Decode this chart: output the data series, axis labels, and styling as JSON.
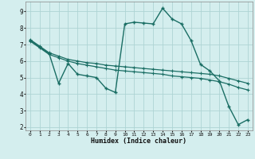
{
  "xlabel": "Humidex (Indice chaleur)",
  "bg_color": "#d4eeee",
  "grid_color": "#aed4d4",
  "line_color": "#1a6e64",
  "xlim": [
    -0.5,
    23.5
  ],
  "ylim": [
    1.8,
    9.6
  ],
  "yticks": [
    2,
    3,
    4,
    5,
    6,
    7,
    8,
    9
  ],
  "xticks": [
    0,
    1,
    2,
    3,
    4,
    5,
    6,
    7,
    8,
    9,
    10,
    11,
    12,
    13,
    14,
    15,
    16,
    17,
    18,
    19,
    20,
    21,
    22,
    23
  ],
  "line1_x": [
    0,
    1,
    2,
    3,
    4,
    5,
    6,
    7,
    8,
    9,
    10,
    11,
    12,
    13,
    14,
    15,
    16,
    17,
    18,
    19,
    20,
    21,
    22,
    23
  ],
  "line1_y": [
    7.3,
    6.9,
    6.5,
    6.3,
    6.1,
    6.0,
    5.9,
    5.85,
    5.75,
    5.7,
    5.65,
    5.6,
    5.55,
    5.5,
    5.45,
    5.4,
    5.35,
    5.3,
    5.25,
    5.2,
    5.1,
    4.95,
    4.8,
    4.65
  ],
  "line2_x": [
    0,
    1,
    2,
    3,
    4,
    5,
    6,
    7,
    8,
    9,
    10,
    11,
    12,
    13,
    14,
    15,
    16,
    17,
    18,
    19,
    20,
    21,
    22,
    23
  ],
  "line2_y": [
    7.2,
    6.8,
    6.4,
    6.2,
    6.0,
    5.85,
    5.75,
    5.65,
    5.55,
    5.45,
    5.4,
    5.35,
    5.3,
    5.25,
    5.2,
    5.1,
    5.05,
    5.0,
    4.95,
    4.85,
    4.75,
    4.6,
    4.4,
    4.25
  ],
  "line3_x": [
    0,
    1,
    2,
    3,
    4,
    5,
    6,
    7,
    8,
    9,
    10,
    11,
    12,
    13,
    14,
    15,
    16,
    17,
    18,
    19,
    20,
    21,
    22,
    23
  ],
  "line3_y": [
    7.25,
    6.85,
    6.45,
    4.65,
    5.85,
    5.2,
    5.1,
    5.0,
    4.35,
    4.1,
    8.25,
    8.35,
    8.3,
    8.25,
    9.2,
    8.55,
    8.25,
    7.25,
    5.8,
    5.4,
    4.8,
    3.25,
    2.15,
    2.45
  ]
}
